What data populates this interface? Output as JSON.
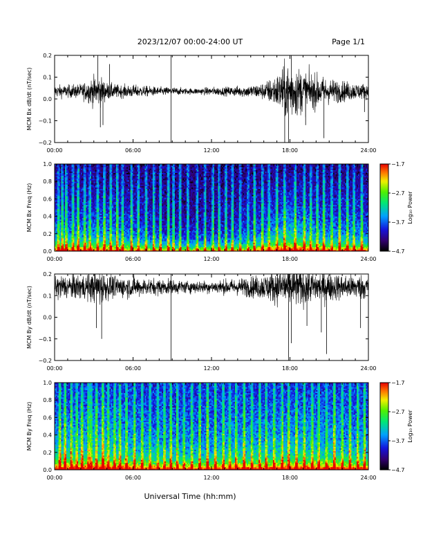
{
  "header": {
    "title": "2023/12/07  00:00-24:00 UT",
    "page": "Page 1/1"
  },
  "footer": {
    "xlabel": "Universal Time (hh:mm)"
  },
  "chart_data": [
    {
      "type": "line",
      "ylabel": "MCM Bx dB/dt (nT/sec)",
      "xlim": [
        0,
        24
      ],
      "ylim": [
        -0.2,
        0.2
      ],
      "x_tick_labels": [
        "00:00",
        "06:00",
        "12:00",
        "18:00",
        "24:00"
      ],
      "y_ticks": [
        -0.2,
        -0.1,
        0.0,
        0.1,
        0.2
      ],
      "y_tick_labels": [
        "−0.2",
        "−0.1",
        "0.0",
        "0.1",
        "0.2"
      ],
      "baseline": 0.035,
      "envelope_x": [
        0,
        1,
        2,
        2.5,
        3,
        3.5,
        4,
        5,
        6,
        7,
        8,
        9,
        10,
        11,
        12,
        13,
        14,
        15,
        16,
        16.5,
        17,
        17.5,
        18,
        18.5,
        19,
        19.5,
        20,
        21,
        22,
        23,
        24
      ],
      "envelope_y": [
        0.03,
        0.03,
        0.035,
        0.05,
        0.07,
        0.07,
        0.04,
        0.03,
        0.03,
        0.025,
        0.02,
        0.02,
        0.015,
        0.015,
        0.02,
        0.02,
        0.025,
        0.03,
        0.04,
        0.06,
        0.08,
        0.12,
        0.14,
        0.12,
        0.1,
        0.09,
        0.08,
        0.06,
        0.05,
        0.04,
        0.035
      ],
      "spikes": [
        [
          3.3,
          0.2
        ],
        [
          3.5,
          -0.13
        ],
        [
          3.7,
          -0.12
        ],
        [
          4.2,
          0.16
        ],
        [
          8.9,
          -0.22
        ],
        [
          8.9,
          0.22
        ],
        [
          17.6,
          -0.2
        ],
        [
          17.9,
          -0.22
        ],
        [
          18.1,
          0.2
        ],
        [
          19.2,
          -0.12
        ],
        [
          20.6,
          -0.18
        ],
        [
          23.7,
          -0.06
        ]
      ]
    },
    {
      "type": "heatmap",
      "ylabel": "MCM Bx Freq (Hz)",
      "xlim": [
        0,
        24
      ],
      "ylim": [
        0.0,
        1.0
      ],
      "x_tick_labels": [
        "00:00",
        "06:00",
        "12:00",
        "18:00",
        "24:00"
      ],
      "y_ticks": [
        0.0,
        0.2,
        0.4,
        0.6,
        0.8,
        1.0
      ],
      "y_tick_labels": [
        "0.0",
        "0.2",
        "0.4",
        "0.6",
        "0.8",
        "1.0"
      ],
      "colorbar": {
        "label": "Log₁₀ Power",
        "range": [
          -4.7,
          -1.7
        ],
        "tick_labels": [
          "−1.7",
          "−2.7",
          "−3.7",
          "−4.7"
        ],
        "colormap": "rainbow"
      },
      "background_level": -4.3,
      "time_level_x": [
        0,
        2,
        4,
        6,
        8,
        10,
        12,
        14,
        15.5,
        17,
        18,
        19,
        20,
        22,
        24
      ],
      "time_level_y": [
        -3.6,
        -3.6,
        -3.6,
        -3.8,
        -4.0,
        -4.2,
        -4.1,
        -4.0,
        -3.8,
        -3.4,
        -3.2,
        -3.4,
        -3.6,
        -3.6,
        -3.7
      ],
      "bright_columns": [
        0.3,
        0.6,
        0.9,
        1.4,
        1.8,
        2.3,
        2.7,
        3.3,
        3.8,
        4.3,
        4.8,
        5.2,
        5.9,
        6.4,
        7.0,
        7.6,
        8.1,
        8.7,
        9.1,
        9.6,
        10.2,
        10.9,
        11.5,
        12.1,
        12.6,
        13.1,
        13.6,
        14.2,
        14.8,
        15.3,
        15.9,
        16.4,
        17.0,
        17.6,
        18.4,
        19.1,
        19.6,
        20.1,
        20.6,
        21.2,
        21.8,
        22.4,
        22.9,
        23.5
      ]
    },
    {
      "type": "line",
      "ylabel": "MCM By dB/dt (nT/sec)",
      "xlim": [
        0,
        24
      ],
      "ylim": [
        -0.2,
        0.2
      ],
      "x_tick_labels": [
        "00:00",
        "06:00",
        "12:00",
        "18:00",
        "24:00"
      ],
      "y_ticks": [
        -0.2,
        -0.1,
        0.0,
        0.1,
        0.2
      ],
      "y_tick_labels": [
        "−0.2",
        "−0.1",
        "0.0",
        "0.1",
        "0.2"
      ],
      "baseline": 0.14,
      "envelope_x": [
        0,
        1,
        2,
        3,
        3.5,
        4,
        5,
        6,
        7,
        8,
        9,
        10,
        11,
        12,
        13,
        14,
        15,
        16,
        17,
        17.5,
        18,
        19,
        20,
        21,
        22,
        23,
        24
      ],
      "envelope_y": [
        0.06,
        0.06,
        0.06,
        0.07,
        0.09,
        0.06,
        0.05,
        0.05,
        0.04,
        0.04,
        0.035,
        0.03,
        0.03,
        0.03,
        0.035,
        0.04,
        0.05,
        0.06,
        0.08,
        0.1,
        0.1,
        0.09,
        0.08,
        0.07,
        0.06,
        0.06,
        0.06
      ],
      "spikes": [
        [
          3.6,
          -0.1
        ],
        [
          3.2,
          -0.05
        ],
        [
          8.9,
          -0.22
        ],
        [
          8.9,
          0.2
        ],
        [
          17.9,
          -0.22
        ],
        [
          18.1,
          -0.12
        ],
        [
          19.3,
          -0.04
        ],
        [
          20.4,
          -0.07
        ],
        [
          20.8,
          -0.17
        ],
        [
          23.4,
          -0.05
        ]
      ]
    },
    {
      "type": "heatmap",
      "ylabel": "MCM By Freq (Hz)",
      "xlim": [
        0,
        24
      ],
      "ylim": [
        0.0,
        1.0
      ],
      "x_tick_labels": [
        "00:00",
        "06:00",
        "12:00",
        "18:00",
        "24:00"
      ],
      "y_ticks": [
        0.0,
        0.2,
        0.4,
        0.6,
        0.8,
        1.0
      ],
      "y_tick_labels": [
        "0.0",
        "0.2",
        "0.4",
        "0.6",
        "0.8",
        "1.0"
      ],
      "colorbar": {
        "label": "Log₁₀ Power",
        "range": [
          -4.7,
          -1.7
        ],
        "tick_labels": [
          "−1.7",
          "−2.7",
          "−3.7",
          "−4.7"
        ],
        "colormap": "rainbow"
      },
      "background_level": -3.9,
      "time_level_x": [
        0,
        2,
        4,
        6,
        8,
        10,
        12,
        14,
        16,
        18,
        20,
        22,
        24
      ],
      "time_level_y": [
        -3.3,
        -3.3,
        -3.2,
        -3.4,
        -3.5,
        -3.6,
        -3.5,
        -3.4,
        -3.4,
        -3.3,
        -3.3,
        -3.4,
        -3.5
      ],
      "bright_columns": [
        0.4,
        0.8,
        1.3,
        1.7,
        2.1,
        2.6,
        2.8,
        3.2,
        3.7,
        4.1,
        4.6,
        5.0,
        5.5,
        6.1,
        6.7,
        7.3,
        7.9,
        8.4,
        8.9,
        9.4,
        9.9,
        10.5,
        11.1,
        11.7,
        12.3,
        12.9,
        13.4,
        13.9,
        14.5,
        15.1,
        15.7,
        16.2,
        16.8,
        17.4,
        17.9,
        18.5,
        19.1,
        19.7,
        20.2,
        20.8,
        21.4,
        22.0,
        22.6,
        23.2,
        23.7
      ]
    }
  ]
}
